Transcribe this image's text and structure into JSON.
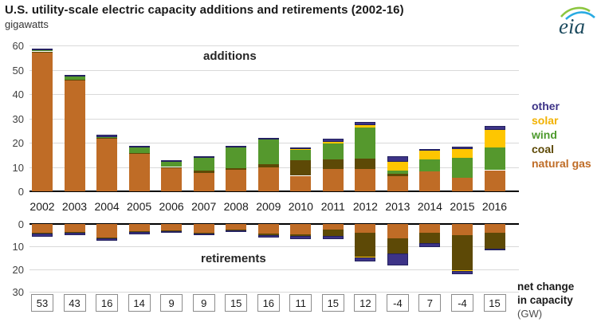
{
  "header": {
    "title": "U.S. utility-scale electric capacity additions and retirements (2002-16)",
    "units": "gigawatts",
    "logo": "eia"
  },
  "labels": {
    "additions": "additions",
    "retirements": "retirements",
    "net_change_line1": "net change",
    "net_change_line2": "in capacity",
    "net_change_line3": "(GW)"
  },
  "chart_data": {
    "type": "bar",
    "stacked": true,
    "title": "U.S. utility-scale electric capacity additions and retirements (2002-16)",
    "ylabel": "gigawatts",
    "grid": true,
    "legend_position": "right",
    "categories": [
      "2002",
      "2003",
      "2004",
      "2005",
      "2006",
      "2007",
      "2008",
      "2009",
      "2010",
      "2011",
      "2012",
      "2013",
      "2014",
      "2015",
      "2016"
    ],
    "series_colors": {
      "natural gas": "#bf6c26",
      "coal": "#5d4906",
      "wind": "#55982d",
      "solar": "#fec601",
      "other": "#3d3387"
    },
    "other_border_color": "#23215f",
    "grid_color": "#d9d9d9",
    "additions": {
      "ylim": [
        0,
        60
      ],
      "yticks": [
        0,
        10,
        20,
        30,
        40,
        50,
        60
      ],
      "series": [
        {
          "name": "natural gas",
          "values": [
            57.2,
            45.5,
            21.5,
            15.5,
            9.4,
            7.5,
            9.0,
            10.0,
            6.4,
            9.3,
            9.3,
            6.3,
            8.2,
            5.6,
            8.7
          ]
        },
        {
          "name": "coal",
          "values": [
            0.2,
            0.2,
            0.5,
            0.3,
            0.6,
            1.0,
            0.5,
            1.3,
            6.3,
            3.7,
            4.0,
            0.8,
            0,
            0,
            0
          ]
        },
        {
          "name": "wind",
          "values": [
            0.7,
            1.7,
            0.4,
            2.4,
            2.5,
            5.3,
            8.4,
            10.0,
            4.5,
            6.8,
            12.9,
            1.3,
            4.9,
            8.2,
            9.2
          ]
        },
        {
          "name": "solar",
          "values": [
            0,
            0,
            0,
            0,
            0,
            0.1,
            0.1,
            0.2,
            0.2,
            0.5,
            1.1,
            3.6,
            3.5,
            3.7,
            7.3
          ]
        },
        {
          "name": "other",
          "values": [
            0.5,
            0.4,
            0.9,
            0.4,
            0.2,
            0.2,
            0.2,
            0.4,
            0.4,
            1.5,
            1.3,
            2.3,
            0.8,
            0.8,
            1.6
          ]
        }
      ]
    },
    "retirements": {
      "ylim": [
        0,
        30
      ],
      "yticks": [
        0,
        10,
        20,
        30
      ],
      "direction": "down",
      "series": [
        {
          "name": "natural gas",
          "values": [
            3.8,
            3.4,
            6.0,
            3.2,
            2.8,
            3.7,
            2.3,
            4.3,
            4.6,
            2.6,
            3.8,
            6.3,
            3.7,
            4.9,
            3.8
          ]
        },
        {
          "name": "coal",
          "values": [
            0.4,
            0.4,
            0.3,
            0.4,
            0.4,
            0.6,
            0.5,
            0.5,
            0.7,
            2.8,
            10.5,
            6.9,
            4.9,
            15.5,
            7.2
          ]
        },
        {
          "name": "solar",
          "values": [
            0,
            0,
            0,
            0,
            0,
            0,
            0,
            0,
            0,
            0,
            0.3,
            0,
            0,
            0.3,
            0
          ]
        },
        {
          "name": "other",
          "values": [
            1.4,
            1.0,
            1.0,
            1.0,
            0.5,
            0.8,
            0.4,
            1.1,
            1.5,
            1.4,
            2.0,
            5.1,
            1.8,
            1.6,
            0.8
          ]
        }
      ]
    },
    "net_change": [
      53,
      43,
      16,
      14,
      9,
      9,
      15,
      16,
      11,
      15,
      12,
      -4,
      7,
      -4,
      15
    ],
    "legend": [
      {
        "label": "other",
        "color": "#3d3387"
      },
      {
        "label": "solar",
        "color": "#f2b200"
      },
      {
        "label": "wind",
        "color": "#4e9a2e"
      },
      {
        "label": "coal",
        "color": "#5d4906"
      },
      {
        "label": "natural gas",
        "color": "#bf6c26"
      }
    ]
  }
}
